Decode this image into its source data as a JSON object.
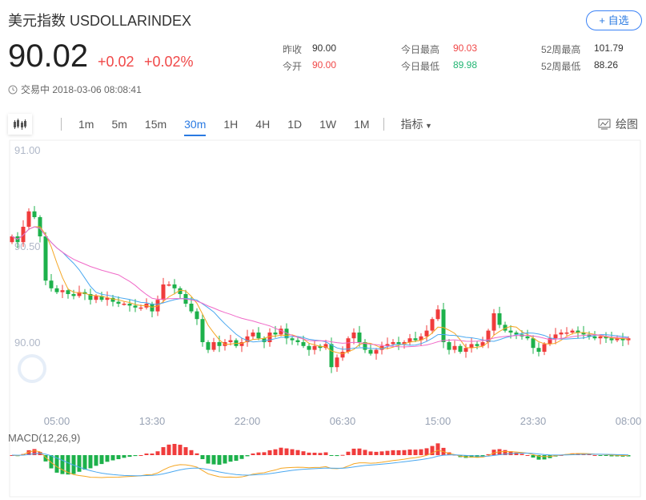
{
  "header": {
    "title": "美元指数 USDOLLARINDEX",
    "fav_label": "+ 自选",
    "price": "90.02",
    "change": "+0.02",
    "change_pct": "+0.02%",
    "status": "交易中 2018-03-06 08:08:41"
  },
  "stats": [
    {
      "label": "昨收",
      "value": "90.00",
      "color": "#333333"
    },
    {
      "label": "今开",
      "value": "90.00",
      "color": "#f04848"
    },
    {
      "label": "今日最高",
      "value": "90.03",
      "color": "#f04848"
    },
    {
      "label": "今日最低",
      "value": "89.98",
      "color": "#22b573"
    },
    {
      "label": "52周最高",
      "value": "101.79",
      "color": "#333333"
    },
    {
      "label": "52周最低",
      "value": "88.26",
      "color": "#333333"
    }
  ],
  "toolbar": {
    "intervals": [
      "1m",
      "5m",
      "15m",
      "30m",
      "1H",
      "4H",
      "1D",
      "1W",
      "1M"
    ],
    "active": "30m",
    "indicator_label": "指标",
    "draw_label": "绘图"
  },
  "colors": {
    "up": "#f03c3c",
    "down": "#1db14b",
    "ma5": "#f5a623",
    "ma10": "#4aa8f0",
    "ma20": "#f06ac8",
    "accent": "#2a7ae2"
  },
  "chart_data": {
    "type": "candlestick",
    "y_ticks": [
      "91.00",
      "90.50",
      "90.00"
    ],
    "y_tick_values": [
      91.0,
      90.5,
      90.0
    ],
    "ylim": [
      89.68,
      91.05
    ],
    "x_ticks": [
      {
        "label": "05:00",
        "bar": 8
      },
      {
        "label": "13:30",
        "bar": 25
      },
      {
        "label": "22:00",
        "bar": 42
      },
      {
        "label": "06:30",
        "bar": 59
      },
      {
        "label": "15:00",
        "bar": 76
      },
      {
        "label": "23:30",
        "bar": 93
      },
      {
        "label": "08:00",
        "bar": 110
      }
    ],
    "closes": [
      90.55,
      90.52,
      90.6,
      90.68,
      90.65,
      90.55,
      90.32,
      90.28,
      90.26,
      90.27,
      90.25,
      90.24,
      90.26,
      90.25,
      90.22,
      90.24,
      90.22,
      90.23,
      90.21,
      90.2,
      90.2,
      90.19,
      90.18,
      90.18,
      90.2,
      90.16,
      90.22,
      90.3,
      90.3,
      90.28,
      90.25,
      90.2,
      90.16,
      90.12,
      90.0,
      89.96,
      90.0,
      89.98,
      90.0,
      90.01,
      89.98,
      90.0,
      90.03,
      90.05,
      90.02,
      90.0,
      90.05,
      90.04,
      90.07,
      90.02,
      90.01,
      90.0,
      89.98,
      89.96,
      89.98,
      89.97,
      89.99,
      89.87,
      89.92,
      89.95,
      90.02,
      90.05,
      90.0,
      89.96,
      89.94,
      89.96,
      89.98,
      89.99,
      90.0,
      89.99,
      90.0,
      90.02,
      90.01,
      90.03,
      90.06,
      90.12,
      90.17,
      90.0,
      89.96,
      89.98,
      89.95,
      89.97,
      89.99,
      89.98,
      90.0,
      90.06,
      90.15,
      90.09,
      90.06,
      90.05,
      90.04,
      90.03,
      90.02,
      89.97,
      89.95,
      89.99,
      90.02,
      90.04,
      90.05,
      90.05,
      90.06,
      90.05,
      90.04,
      90.03,
      90.02,
      90.03,
      90.02,
      90.01,
      90.02,
      90.01,
      90.02
    ],
    "ma_periods": [
      5,
      10,
      20
    ],
    "macd_label": "MACD(12,26,9)",
    "macd_params": [
      12,
      26,
      9
    ]
  }
}
